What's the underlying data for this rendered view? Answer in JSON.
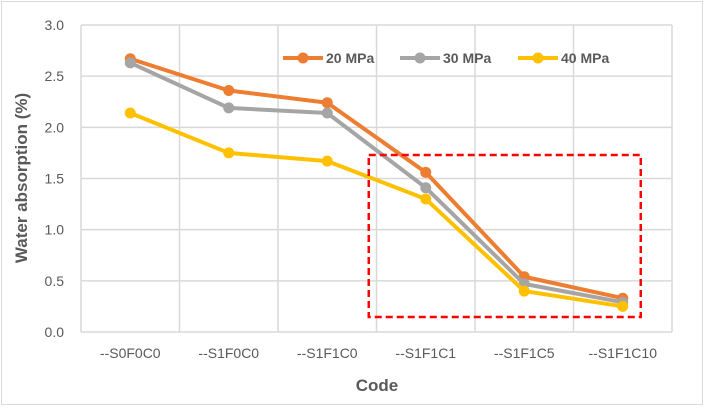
{
  "chart_data": {
    "type": "line",
    "title": "",
    "xlabel": "Code",
    "ylabel": "Water absorption (%)",
    "categories": [
      "--S0F0C0",
      "--S1F0C0",
      "--S1F1C0",
      "--S1F1C1",
      "--S1F1C5",
      "--S1F1C10"
    ],
    "ylim": [
      0,
      3.0
    ],
    "yticks": [
      "0.0",
      "0.5",
      "1.0",
      "1.5",
      "2.0",
      "2.5",
      "3.0"
    ],
    "grid": true,
    "legend_position": "top-right",
    "series": [
      {
        "name": "20 MPa",
        "color": "#ed7d31",
        "values": [
          2.67,
          2.36,
          2.24,
          1.56,
          0.54,
          0.33
        ]
      },
      {
        "name": "30 MPa",
        "color": "#a5a5a5",
        "values": [
          2.63,
          2.19,
          2.14,
          1.41,
          0.47,
          0.29
        ]
      },
      {
        "name": "40 MPa",
        "color": "#ffc000",
        "values": [
          2.14,
          1.75,
          1.67,
          1.3,
          0.4,
          0.25
        ]
      }
    ],
    "highlight_box": {
      "from_category": "--S1F1C1",
      "to_category": "--S1F1C10",
      "color": "#ff0000"
    }
  }
}
